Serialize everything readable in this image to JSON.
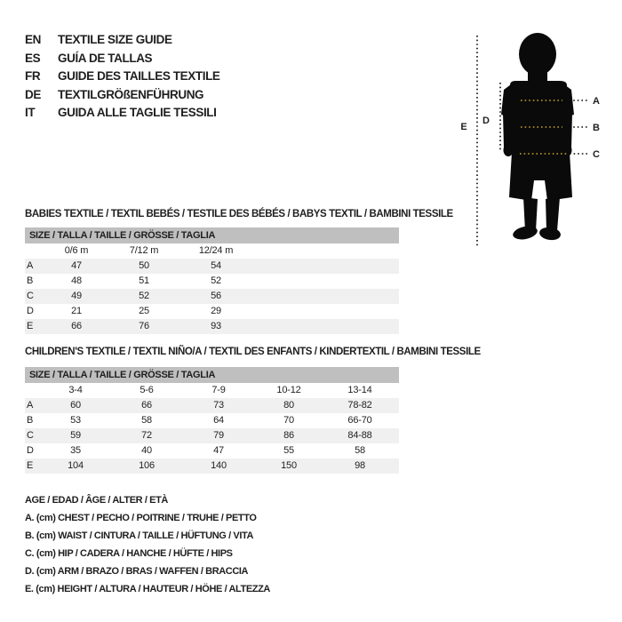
{
  "languages": [
    {
      "code": "EN",
      "label": "TEXTILE SIZE GUIDE"
    },
    {
      "code": "ES",
      "label": "GUÍA DE TALLAS"
    },
    {
      "code": "FR",
      "label": "GUIDE DES TAILLES TEXTILE"
    },
    {
      "code": "DE",
      "label": "TEXTILGRÖßENFÜHRUNG"
    },
    {
      "code": "IT",
      "label": "GUIDA ALLE TAGLIE TESSILI"
    }
  ],
  "figure": {
    "label_a": "A",
    "label_b": "B",
    "label_c": "C",
    "label_d": "D",
    "label_e": "E"
  },
  "babies_table": {
    "title": "BABIES TEXTILE / TEXTIL BEBÉS / TESTILE DES BÉBÉS / BABYS TEXTIL / BAMBINI TESSILE",
    "size_header": "SIZE / TALLA / TAILLE / GRÖSSE / TAGLIA",
    "columns": [
      "0/6 m",
      "7/12 m",
      "12/24 m"
    ],
    "rows": [
      {
        "label": "A",
        "values": [
          "47",
          "50",
          "54"
        ]
      },
      {
        "label": "B",
        "values": [
          "48",
          "51",
          "52"
        ]
      },
      {
        "label": "C",
        "values": [
          "49",
          "52",
          "56"
        ]
      },
      {
        "label": "D",
        "values": [
          "21",
          "25",
          "29"
        ]
      },
      {
        "label": "E",
        "values": [
          "66",
          "76",
          "93"
        ]
      }
    ]
  },
  "children_table": {
    "title": "CHILDREN'S TEXTILE / TEXTIL NIÑO/A / TEXTIL DES ENFANTS / KINDERTEXTIL / BAMBINI TESSILE",
    "size_header": "SIZE / TALLA / TAILLE / GRÖSSE / TAGLIA",
    "columns": [
      "3-4",
      "5-6",
      "7-9",
      "10-12",
      "13-14"
    ],
    "rows": [
      {
        "label": "A",
        "values": [
          "60",
          "66",
          "73",
          "80",
          "78-82"
        ]
      },
      {
        "label": "B",
        "values": [
          "53",
          "58",
          "64",
          "70",
          "66-70"
        ]
      },
      {
        "label": "C",
        "values": [
          "59",
          "72",
          "79",
          "86",
          "84-88"
        ]
      },
      {
        "label": "D",
        "values": [
          "35",
          "40",
          "47",
          "55",
          "58"
        ]
      },
      {
        "label": "E",
        "values": [
          "104",
          "106",
          "140",
          "150",
          "98"
        ]
      }
    ]
  },
  "legend": [
    "AGE / EDAD / ÂGE / ALTER / ETÀ",
    "A. (cm) CHEST / PECHO / POITRINE / TRUHE / PETTO",
    "B. (cm) WAIST / CINTURA / TAILLE / HÜFTUNG / VITA",
    "C. (cm) HIP / CADERA / HANCHE / HÜFTE / HIPS",
    "D. (cm) ARM / BRAZO / BRAS / WAFFEN / BRACCIA",
    "E. (cm) HEIGHT / ALTURA / HAUTEUR / HÖHE / ALTEZZA"
  ],
  "colors": {
    "header_bar": "#bfbfbf",
    "row_stripe": "#f0f0f0",
    "text": "#1f1f1f",
    "measure_dots": "#c9a227",
    "silhouette": "#0a0a0a"
  }
}
